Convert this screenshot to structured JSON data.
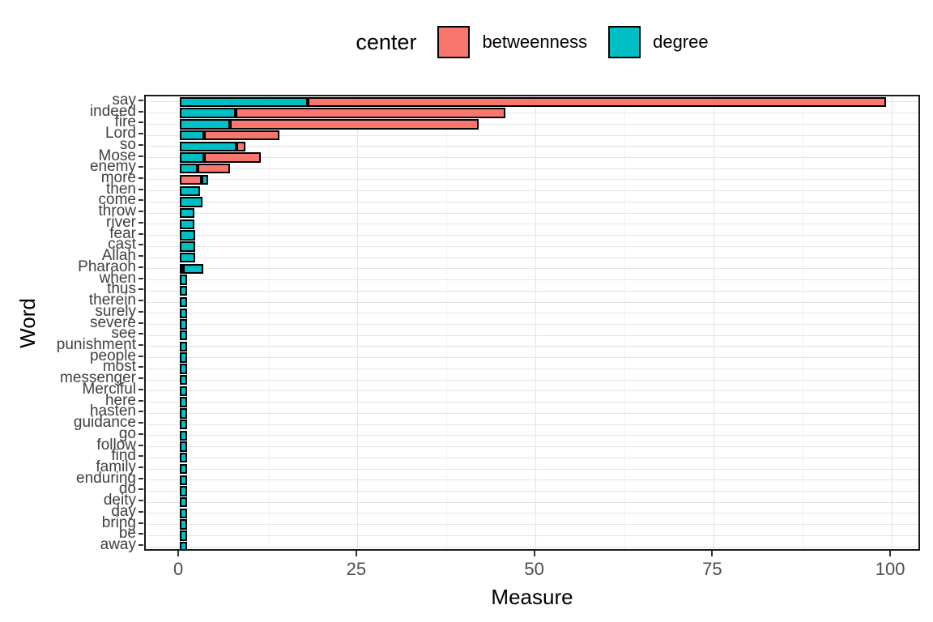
{
  "figure": {
    "background": "#ffffff"
  },
  "chart_data": {
    "type": "bar",
    "orientation": "horizontal",
    "stacked": true,
    "title": "",
    "xlabel": "Measure",
    "ylabel": "Word",
    "xlim": [
      0,
      100
    ],
    "xticks": [
      0,
      25,
      50,
      75,
      100
    ],
    "xtick_labels": [
      "0",
      "25",
      "50",
      "75",
      "100"
    ],
    "minor_xticks": [
      12.5,
      37.5,
      62.5,
      87.5
    ],
    "grid": "on",
    "legend": {
      "title": "center",
      "position": "top",
      "entries": [
        {
          "label": "betweenness",
          "color": "#F8766D"
        },
        {
          "label": "degree",
          "color": "#00BFC4"
        }
      ]
    },
    "series_colors": {
      "betweenness": "#F8766D",
      "degree": "#00BFC4"
    },
    "bar_outline_color": "#000000",
    "rows": [
      {
        "word": "say",
        "segments": [
          {
            "center": "degree",
            "value": 18
          },
          {
            "center": "betweenness",
            "value": 81.2
          }
        ]
      },
      {
        "word": "indeed",
        "segments": [
          {
            "center": "degree",
            "value": 7.8
          },
          {
            "center": "betweenness",
            "value": 37.9
          }
        ]
      },
      {
        "word": "fire",
        "segments": [
          {
            "center": "degree",
            "value": 7
          },
          {
            "center": "betweenness",
            "value": 35
          }
        ]
      },
      {
        "word": "Lord",
        "segments": [
          {
            "center": "degree",
            "value": 3.4
          },
          {
            "center": "betweenness",
            "value": 10.6
          }
        ]
      },
      {
        "word": "so",
        "segments": [
          {
            "center": "degree",
            "value": 8
          },
          {
            "center": "betweenness",
            "value": 1.2
          }
        ]
      },
      {
        "word": "Mose",
        "segments": [
          {
            "center": "degree",
            "value": 3.4
          },
          {
            "center": "betweenness",
            "value": 8
          }
        ]
      },
      {
        "word": "enemy",
        "segments": [
          {
            "center": "degree",
            "value": 2.5
          },
          {
            "center": "betweenness",
            "value": 4.5
          }
        ]
      },
      {
        "word": "more",
        "segments": [
          {
            "center": "betweenness",
            "value": 3.1
          },
          {
            "center": "degree",
            "value": 0.9
          }
        ]
      },
      {
        "word": "then",
        "segments": [
          {
            "center": "degree",
            "value": 2.8
          }
        ]
      },
      {
        "word": "come",
        "segments": [
          {
            "center": "degree",
            "value": 3.2
          }
        ]
      },
      {
        "word": "throw",
        "segments": [
          {
            "center": "degree",
            "value": 2
          }
        ]
      },
      {
        "word": "river",
        "segments": [
          {
            "center": "degree",
            "value": 2
          }
        ]
      },
      {
        "word": "fear",
        "segments": [
          {
            "center": "degree",
            "value": 2.1
          }
        ]
      },
      {
        "word": "cast",
        "segments": [
          {
            "center": "degree",
            "value": 2.1
          }
        ]
      },
      {
        "word": "Allah",
        "segments": [
          {
            "center": "degree",
            "value": 2.1
          }
        ]
      },
      {
        "word": "Pharaoh",
        "segments": [
          {
            "center": "betweenness",
            "value": 0.4
          },
          {
            "center": "degree",
            "value": 2.9
          }
        ]
      },
      {
        "word": "when",
        "segments": [
          {
            "center": "degree",
            "value": 1
          }
        ]
      },
      {
        "word": "thus",
        "segments": [
          {
            "center": "degree",
            "value": 1
          }
        ]
      },
      {
        "word": "therein",
        "segments": [
          {
            "center": "degree",
            "value": 1
          }
        ]
      },
      {
        "word": "surely",
        "segments": [
          {
            "center": "degree",
            "value": 1
          }
        ]
      },
      {
        "word": "severe",
        "segments": [
          {
            "center": "degree",
            "value": 1
          }
        ]
      },
      {
        "word": "see",
        "segments": [
          {
            "center": "degree",
            "value": 1
          }
        ]
      },
      {
        "word": "punishment",
        "segments": [
          {
            "center": "degree",
            "value": 1
          }
        ]
      },
      {
        "word": "people",
        "segments": [
          {
            "center": "degree",
            "value": 1
          }
        ]
      },
      {
        "word": "most",
        "segments": [
          {
            "center": "degree",
            "value": 1
          }
        ]
      },
      {
        "word": "messenger",
        "segments": [
          {
            "center": "degree",
            "value": 1
          }
        ]
      },
      {
        "word": "Merciful",
        "segments": [
          {
            "center": "degree",
            "value": 1
          }
        ]
      },
      {
        "word": "here",
        "segments": [
          {
            "center": "degree",
            "value": 1
          }
        ]
      },
      {
        "word": "hasten",
        "segments": [
          {
            "center": "degree",
            "value": 1
          }
        ]
      },
      {
        "word": "guidance",
        "segments": [
          {
            "center": "degree",
            "value": 1
          }
        ]
      },
      {
        "word": "go",
        "segments": [
          {
            "center": "degree",
            "value": 1
          }
        ]
      },
      {
        "word": "follow",
        "segments": [
          {
            "center": "degree",
            "value": 1
          }
        ]
      },
      {
        "word": "find",
        "segments": [
          {
            "center": "degree",
            "value": 1
          }
        ]
      },
      {
        "word": "family",
        "segments": [
          {
            "center": "degree",
            "value": 1
          }
        ]
      },
      {
        "word": "enduring",
        "segments": [
          {
            "center": "degree",
            "value": 1
          }
        ]
      },
      {
        "word": "do",
        "segments": [
          {
            "center": "degree",
            "value": 1
          }
        ]
      },
      {
        "word": "deity",
        "segments": [
          {
            "center": "degree",
            "value": 1
          }
        ]
      },
      {
        "word": "day",
        "segments": [
          {
            "center": "degree",
            "value": 1
          }
        ]
      },
      {
        "word": "bring",
        "segments": [
          {
            "center": "degree",
            "value": 1
          }
        ]
      },
      {
        "word": "be",
        "segments": [
          {
            "center": "degree",
            "value": 1
          }
        ]
      },
      {
        "word": "away",
        "segments": [
          {
            "center": "degree",
            "value": 1
          }
        ]
      }
    ],
    "style": {
      "major_grid_color": "#E4E4E4",
      "minor_grid_color": "#F1F1F1",
      "panel_border_color": "#1a1a1a",
      "axis_text_color": "#4d4d4d"
    }
  }
}
